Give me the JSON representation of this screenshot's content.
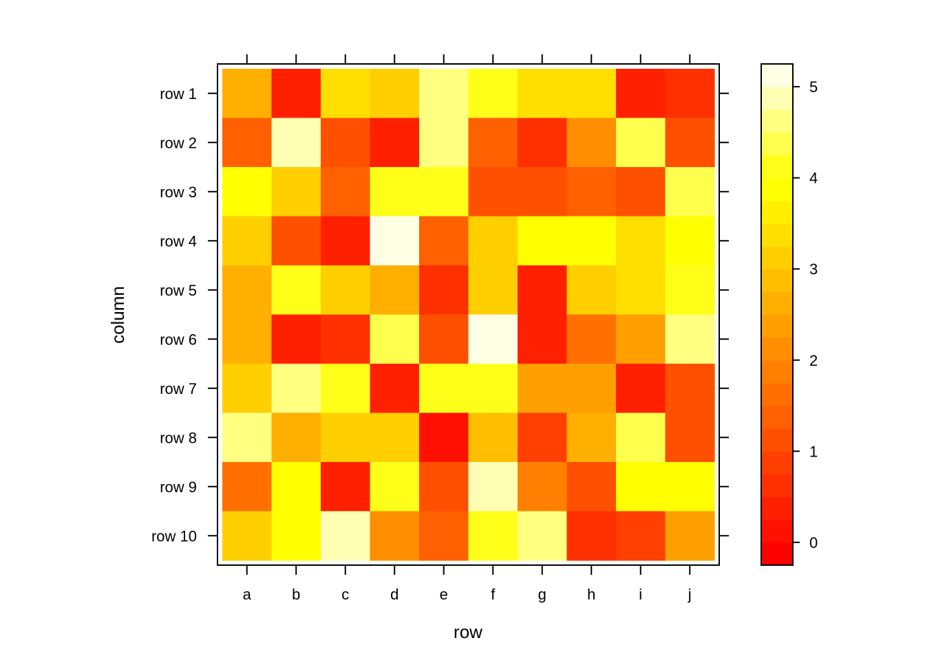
{
  "chart_data": {
    "type": "heatmap",
    "xlabel": "row",
    "ylabel": "column",
    "x_categories": [
      "a",
      "b",
      "c",
      "d",
      "e",
      "f",
      "g",
      "h",
      "i",
      "j"
    ],
    "y_categories": [
      "row 1",
      "row 2",
      "row 3",
      "row 4",
      "row 5",
      "row 6",
      "row 7",
      "row 8",
      "row 9",
      "row 10"
    ],
    "values": [
      [
        2.6,
        0.4,
        3.5,
        3.0,
        4.6,
        4.0,
        3.5,
        3.5,
        0.4,
        0.7
      ],
      [
        1.3,
        4.9,
        1.2,
        0.4,
        4.5,
        1.4,
        0.7,
        2.1,
        4.3,
        1.1
      ],
      [
        3.9,
        3.1,
        1.3,
        4.0,
        4.0,
        1.1,
        1.1,
        1.3,
        1.0,
        4.4
      ],
      [
        3.1,
        1.0,
        0.4,
        5.0,
        1.3,
        3.1,
        3.9,
        3.9,
        3.4,
        3.9
      ],
      [
        2.5,
        4.0,
        3.1,
        2.5,
        0.6,
        3.0,
        0.3,
        3.0,
        3.4,
        4.1
      ],
      [
        2.5,
        0.4,
        0.6,
        4.3,
        1.0,
        5.2,
        0.3,
        1.6,
        2.4,
        4.5
      ],
      [
        3.1,
        4.5,
        4.0,
        0.4,
        4.0,
        4.0,
        2.4,
        2.4,
        0.4,
        1.1
      ],
      [
        4.6,
        2.5,
        3.2,
        3.2,
        0.0,
        2.9,
        0.9,
        2.5,
        4.4,
        1.1
      ],
      [
        1.7,
        3.9,
        0.4,
        4.1,
        1.1,
        4.9,
        1.9,
        1.0,
        3.9,
        3.8
      ],
      [
        3.1,
        3.9,
        4.9,
        2.1,
        1.3,
        4.1,
        4.6,
        0.6,
        0.9,
        2.3
      ]
    ],
    "colorbar": {
      "ticks": [
        0,
        1,
        2,
        3,
        4,
        5
      ],
      "range": [
        -0.25,
        5.25
      ],
      "steps": 22,
      "palette": "heat"
    }
  }
}
